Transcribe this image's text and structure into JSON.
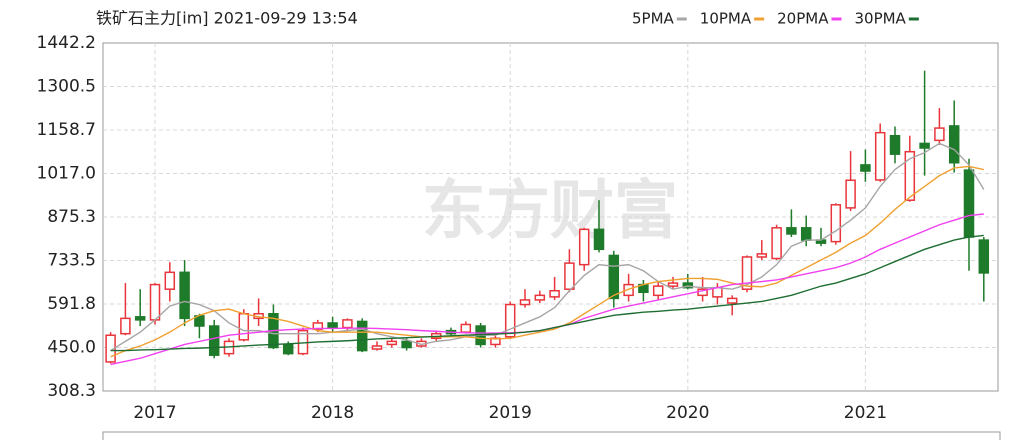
{
  "chart_data": {
    "type": "candlestick",
    "title": "铁矿石主力[im] 2021-09-29 13:54",
    "watermark": "东方财富",
    "categories": [
      null,
      null,
      null,
      "2017",
      null,
      null,
      null,
      null,
      null,
      null,
      null,
      null,
      null,
      null,
      null,
      "2018",
      null,
      null,
      null,
      null,
      null,
      null,
      null,
      null,
      null,
      null,
      null,
      "2019",
      null,
      null,
      null,
      null,
      null,
      null,
      null,
      null,
      null,
      null,
      null,
      "2020",
      null,
      null,
      null,
      null,
      null,
      null,
      null,
      null,
      null,
      null,
      null,
      "2021",
      null,
      null,
      null,
      null,
      null,
      null,
      null,
      null
    ],
    "open": [
      403,
      495,
      550,
      540,
      640,
      695,
      553,
      520,
      430,
      475,
      545,
      560,
      460,
      430,
      510,
      530,
      515,
      535,
      445,
      460,
      470,
      455,
      480,
      505,
      500,
      520,
      460,
      485,
      590,
      605,
      615,
      640,
      720,
      835,
      750,
      620,
      655,
      620,
      650,
      660,
      620,
      615,
      595,
      640,
      745,
      740,
      840,
      840,
      800,
      795,
      905,
      1045,
      996,
      1140,
      930,
      1115,
      1125,
      1172,
      1028,
      800
    ],
    "high": [
      500,
      660,
      640,
      660,
      728,
      735,
      560,
      540,
      480,
      575,
      610,
      590,
      470,
      515,
      540,
      550,
      545,
      545,
      470,
      480,
      480,
      480,
      505,
      515,
      535,
      530,
      490,
      600,
      640,
      635,
      680,
      770,
      840,
      930,
      765,
      690,
      670,
      665,
      680,
      690,
      680,
      660,
      620,
      750,
      800,
      850,
      900,
      880,
      840,
      920,
      1090,
      1095,
      1180,
      1170,
      1140,
      1352,
      1230,
      1255,
      1065,
      810
    ],
    "low": [
      398,
      490,
      520,
      525,
      600,
      520,
      480,
      415,
      420,
      470,
      520,
      445,
      425,
      425,
      500,
      500,
      505,
      435,
      440,
      450,
      440,
      450,
      470,
      490,
      495,
      450,
      450,
      480,
      580,
      595,
      605,
      630,
      700,
      760,
      580,
      600,
      600,
      605,
      640,
      640,
      600,
      590,
      555,
      630,
      735,
      735,
      810,
      780,
      780,
      785,
      895,
      990,
      990,
      1050,
      925,
      1010,
      1110,
      1020,
      700,
      600
    ],
    "close": [
      490,
      545,
      540,
      655,
      695,
      545,
      520,
      425,
      470,
      560,
      560,
      450,
      430,
      505,
      530,
      515,
      540,
      440,
      455,
      470,
      450,
      470,
      495,
      495,
      525,
      460,
      480,
      590,
      605,
      620,
      635,
      725,
      835,
      770,
      610,
      655,
      630,
      650,
      660,
      645,
      640,
      645,
      610,
      745,
      755,
      840,
      820,
      800,
      790,
      915,
      995,
      1025,
      1150,
      1080,
      1088,
      1100,
      1165,
      1052,
      810,
      693
    ],
    "up_color": "#e8343a",
    "down_color": "#1e7b2a",
    "series": [
      {
        "name": "5PMA",
        "color": "#a6a6a6",
        "values": [
          440,
          470,
          500,
          540,
          585,
          600,
          590,
          570,
          530,
          505,
          505,
          495,
          495,
          495,
          495,
          500,
          505,
          510,
          495,
          485,
          475,
          460,
          470,
          475,
          485,
          490,
          490,
          510,
          530,
          550,
          580,
          635,
          685,
          720,
          715,
          720,
          700,
          665,
          640,
          650,
          645,
          645,
          640,
          655,
          680,
          720,
          780,
          800,
          800,
          830,
          865,
          905,
          975,
          1030,
          1065,
          1085,
          1115,
          1095,
          1045,
          965
        ]
      },
      {
        "name": "10PMA",
        "color": "#f0a030",
        "values": [
          420,
          440,
          455,
          475,
          500,
          530,
          555,
          570,
          575,
          560,
          550,
          545,
          535,
          520,
          505,
          500,
          500,
          500,
          500,
          495,
          490,
          485,
          485,
          485,
          485,
          480,
          478,
          480,
          490,
          500,
          510,
          530,
          560,
          590,
          620,
          640,
          655,
          665,
          670,
          675,
          675,
          672,
          660,
          650,
          648,
          660,
          685,
          710,
          735,
          760,
          790,
          815,
          855,
          900,
          940,
          975,
          1010,
          1035,
          1040,
          1030
        ]
      },
      {
        "name": "20PMA",
        "color": "#f040f0",
        "values": [
          395,
          405,
          415,
          430,
          445,
          460,
          470,
          480,
          490,
          495,
          500,
          505,
          508,
          510,
          512,
          512,
          513,
          513,
          512,
          510,
          508,
          505,
          503,
          500,
          498,
          497,
          497,
          498,
          500,
          505,
          515,
          525,
          545,
          560,
          575,
          585,
          595,
          605,
          615,
          625,
          635,
          645,
          655,
          660,
          665,
          670,
          680,
          690,
          700,
          710,
          725,
          745,
          770,
          790,
          810,
          830,
          850,
          865,
          880,
          885
        ]
      },
      {
        "name": "30PMA",
        "color": "#1e6e32",
        "values": [
          440,
          440,
          442,
          443,
          445,
          447,
          448,
          450,
          452,
          455,
          458,
          460,
          462,
          465,
          468,
          470,
          472,
          475,
          478,
          480,
          482,
          484,
          486,
          488,
          490,
          492,
          494,
          496,
          500,
          505,
          515,
          525,
          535,
          545,
          555,
          560,
          565,
          568,
          572,
          575,
          580,
          585,
          590,
          595,
          600,
          610,
          620,
          635,
          650,
          660,
          675,
          690,
          710,
          730,
          750,
          770,
          785,
          800,
          810,
          815
        ]
      }
    ],
    "ylim": [
      308.3,
      1442.2
    ],
    "yticks": [
      {
        "value": 308.3,
        "label": "308.3"
      },
      {
        "value": 450,
        "label": "450.0"
      },
      {
        "value": 591.8,
        "label": "591.8"
      },
      {
        "value": 733.5,
        "label": "733.5"
      },
      {
        "value": 875.3,
        "label": "875.3"
      },
      {
        "value": 1017,
        "label": "1017.0"
      },
      {
        "value": 1158.7,
        "label": "1158.7"
      },
      {
        "value": 1300.5,
        "label": "1300.5"
      },
      {
        "value": 1442.2,
        "label": "1442.2"
      }
    ],
    "grid": true
  }
}
